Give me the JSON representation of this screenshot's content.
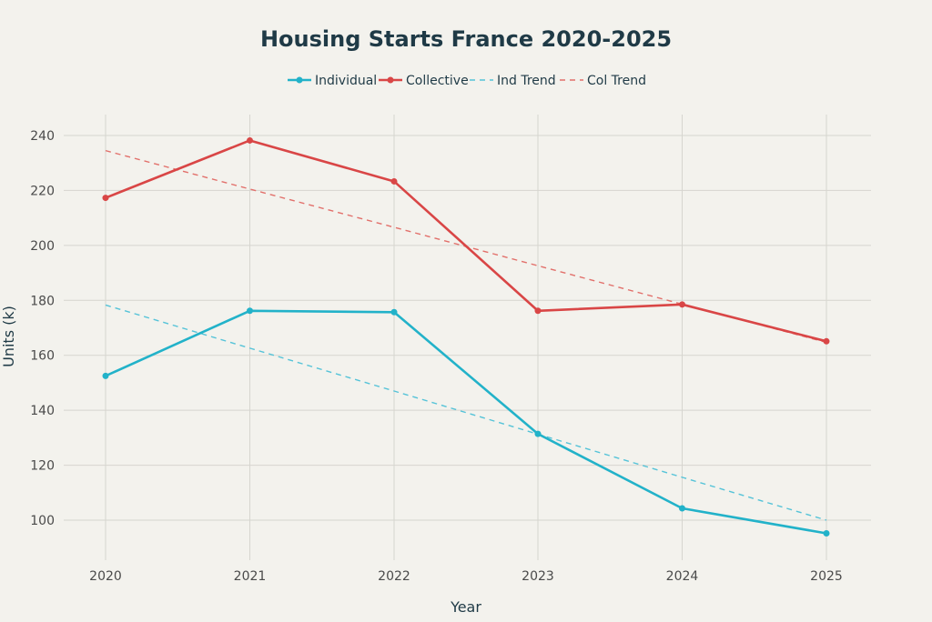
{
  "chart_data": {
    "type": "line",
    "title": "Housing Starts France 2020-2025",
    "xlabel": "Year",
    "ylabel": "Units (k)",
    "x": [
      "2020",
      "2021",
      "2022",
      "2023",
      "2024",
      "2025"
    ],
    "ylim": [
      90,
      247
    ],
    "yticks": [
      100,
      120,
      140,
      160,
      180,
      200,
      220,
      240
    ],
    "grid": true,
    "legend_position": "top-center",
    "series": [
      {
        "name": "Individual",
        "values": [
          152.5,
          176.2,
          175.7,
          131.4,
          104.3,
          95.2
        ],
        "color": "#22b2c9",
        "style": "solid-markers"
      },
      {
        "name": "Collective",
        "values": [
          217.3,
          238.2,
          223.3,
          176.2,
          178.5,
          165.1
        ],
        "color": "#d94646",
        "style": "solid-markers"
      },
      {
        "name": "Ind Trend",
        "values": [
          178.3,
          162.6,
          147.0,
          131.3,
          115.6,
          100.0
        ],
        "color": "#55c3d8",
        "style": "dashed"
      },
      {
        "name": "Col Trend",
        "values": [
          234.5,
          220.5,
          206.6,
          192.6,
          178.6,
          164.7
        ],
        "color": "#e2706b",
        "style": "dashed"
      }
    ]
  }
}
